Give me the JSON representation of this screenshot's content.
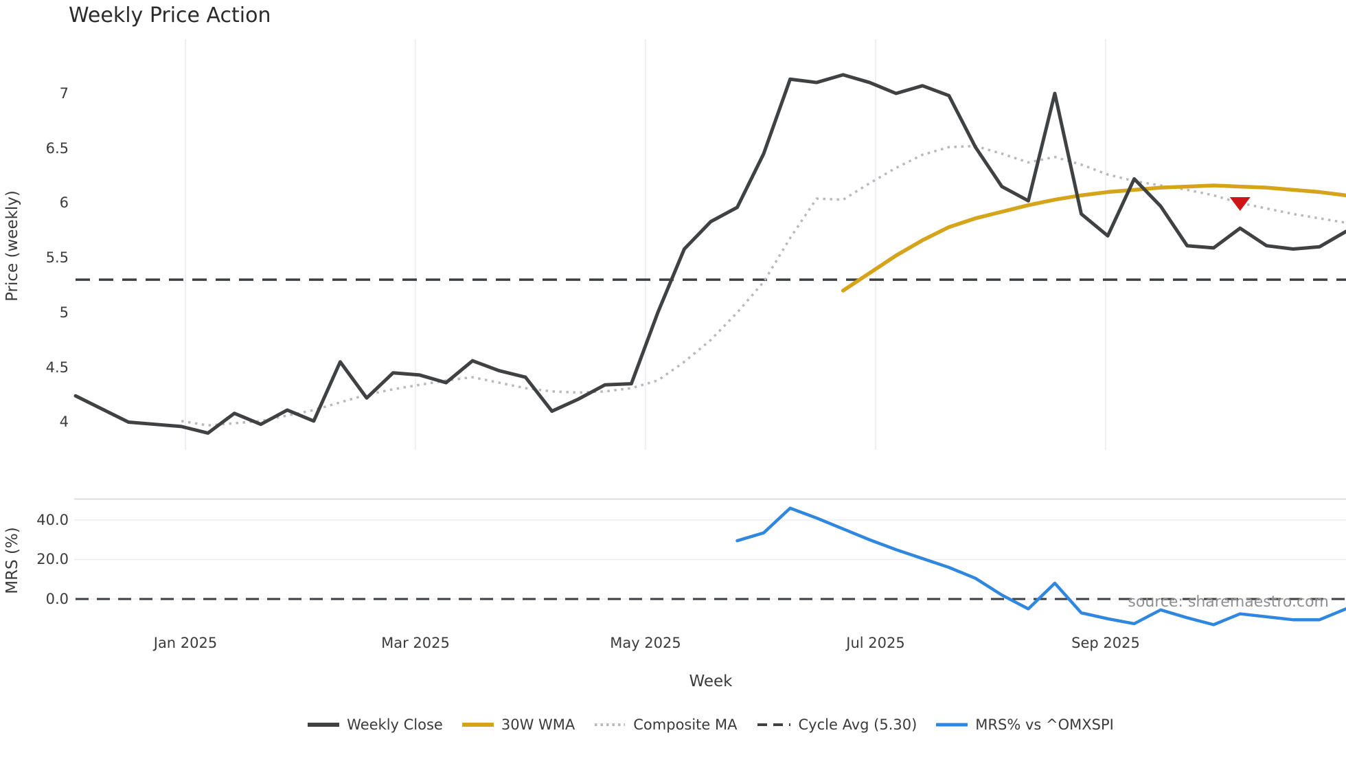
{
  "title": "Weekly Price Action",
  "axes": {
    "price_ylabel": "Price (weekly)",
    "mrs_ylabel": "MRS (%)",
    "xlabel": "Week",
    "price_yticks": [
      "7",
      "6.5",
      "6",
      "5.5",
      "5",
      "4.5",
      "4"
    ],
    "mrs_yticks": [
      "40.0",
      "20.0",
      "0.0"
    ],
    "xticks": [
      "Jan 2025",
      "Mar 2025",
      "May 2025",
      "Jul 2025",
      "Sep 2025"
    ]
  },
  "watermark": "source: sharemaestro.com",
  "legend": [
    {
      "label": "Weekly Close",
      "color": "#3f4143",
      "style": "solid"
    },
    {
      "label": "30W WMA",
      "color": "#d5a41b",
      "style": "solid"
    },
    {
      "label": "Composite MA",
      "color": "#b9b9bd",
      "style": "dotted"
    },
    {
      "label": "Cycle Avg (5.30)",
      "color": "#3f4143",
      "style": "dashed"
    },
    {
      "label": "MRS% vs ^OMXSPI",
      "color": "#2f87e0",
      "style": "solid"
    }
  ],
  "colors": {
    "weekly_close": "#3f4143",
    "wma_30w": "#d5a41b",
    "composite_ma": "#b9b9bd",
    "cycle_avg": "#3b3e42",
    "mrs": "#2f87e0",
    "signal_marker": "#cf1418",
    "gridline": "#eceef4",
    "panel_border": "#dcdee6"
  },
  "chart_data": {
    "type": "line",
    "title": "Weekly Price Action",
    "xlabel": "Week",
    "xticks": [
      "Jan 2025",
      "Mar 2025",
      "May 2025",
      "Jul 2025",
      "Sep 2025"
    ],
    "xtick_weeks": [
      4.15,
      12.84,
      21.53,
      30.23,
      38.92
    ],
    "n_weeks": 49,
    "grid": "vertical-on-price-panel, horizontal-on-mrs-panel",
    "legend_position": "bottom-center",
    "panels": [
      {
        "name": "price",
        "ylabel": "Price (weekly)",
        "yticks": [
          4,
          4.5,
          5,
          5.5,
          6,
          6.5,
          7
        ],
        "ylim": [
          3.75,
          7.48
        ],
        "series": [
          {
            "name": "Weekly Close",
            "style": "solid",
            "color": "#3f4143",
            "start_week": 0,
            "values": [
              4.24,
              4.12,
              4.0,
              3.98,
              3.96,
              3.9,
              4.08,
              3.98,
              4.11,
              4.01,
              4.55,
              4.22,
              4.45,
              4.43,
              4.36,
              4.56,
              4.47,
              4.41,
              4.1,
              4.21,
              4.34,
              4.35,
              5.0,
              5.58,
              5.83,
              5.96,
              6.45,
              7.13,
              7.1,
              7.17,
              7.1,
              7.0,
              7.07,
              6.98,
              6.51,
              6.15,
              6.02,
              7.0,
              5.9,
              5.7,
              6.22,
              5.97,
              5.61,
              5.59,
              5.77,
              5.61,
              5.58,
              5.6,
              5.74
            ]
          },
          {
            "name": "30W WMA",
            "style": "solid",
            "color": "#d5a41b",
            "start_week": 29,
            "values": [
              5.2,
              5.36,
              5.52,
              5.66,
              5.78,
              5.86,
              5.92,
              5.98,
              6.03,
              6.07,
              6.1,
              6.12,
              6.14,
              6.15,
              6.16,
              6.15,
              6.14,
              6.12,
              6.1,
              6.07
            ]
          },
          {
            "name": "Composite MA",
            "style": "dotted",
            "color": "#b9b9bd",
            "start_week": 4,
            "values": [
              4.01,
              3.97,
              3.99,
              4.01,
              4.06,
              4.11,
              4.18,
              4.25,
              4.3,
              4.34,
              4.38,
              4.41,
              4.36,
              4.31,
              4.28,
              4.27,
              4.28,
              4.31,
              4.38,
              4.55,
              4.75,
              5.0,
              5.28,
              5.68,
              6.04,
              6.03,
              6.18,
              6.32,
              6.44,
              6.51,
              6.52,
              6.45,
              6.37,
              6.42,
              6.35,
              6.26,
              6.2,
              6.16,
              6.12,
              6.07,
              6.0,
              5.95,
              5.9,
              5.86,
              5.82
            ]
          },
          {
            "name": "Cycle Avg (5.30)",
            "style": "dashed",
            "color": "#3b3e42",
            "value": 5.3
          }
        ],
        "marker": {
          "name": "sell-signal",
          "shape": "triangle-down",
          "color": "#cf1418",
          "week": 44,
          "price": 6.0
        }
      },
      {
        "name": "mrs",
        "ylabel": "MRS (%)",
        "yticks": [
          0.0,
          20.0,
          40.0
        ],
        "ylim": [
          -15,
          51
        ],
        "series": [
          {
            "name": "MRS% vs ^OMXSPI",
            "style": "solid",
            "color": "#2f87e0",
            "start_week": 25,
            "values": [
              29.5,
              33.5,
              46.0,
              41.0,
              35.5,
              30.0,
              25.0,
              20.5,
              16.0,
              10.5,
              2.0,
              -5.0,
              8.0,
              -7.0,
              -10.0,
              -12.5,
              -5.5,
              -9.5,
              -13.0,
              -7.5,
              -9.0,
              -10.5,
              -10.5,
              -5.0
            ]
          },
          {
            "name": "Zero line",
            "style": "dashed",
            "color": "#3b3e42",
            "value": 0.0
          }
        ]
      }
    ]
  }
}
